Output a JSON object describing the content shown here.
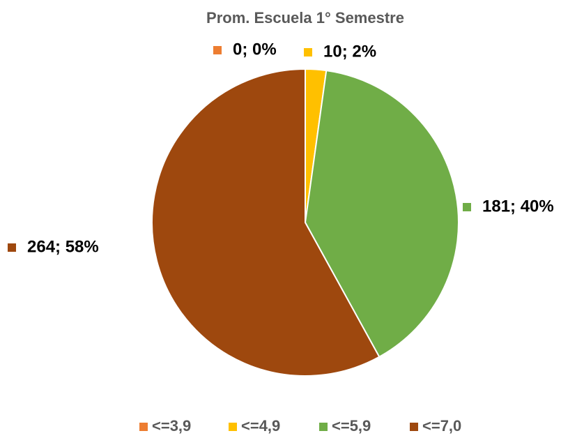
{
  "chart_data": {
    "type": "pie",
    "title": "Prom. Escuela 1° Semestre",
    "categories": [
      "<=3,9",
      "<=4,9",
      "<=5,9",
      "<=7,0"
    ],
    "values": [
      0,
      10,
      181,
      264
    ],
    "value_labels": [
      "0; 0%",
      "10; 2%",
      "181; 40%",
      "264; 58%"
    ],
    "colors": [
      "#ed7d31",
      "#ffc000",
      "#70ad47",
      "#9e480e"
    ],
    "legend": "bottom"
  }
}
